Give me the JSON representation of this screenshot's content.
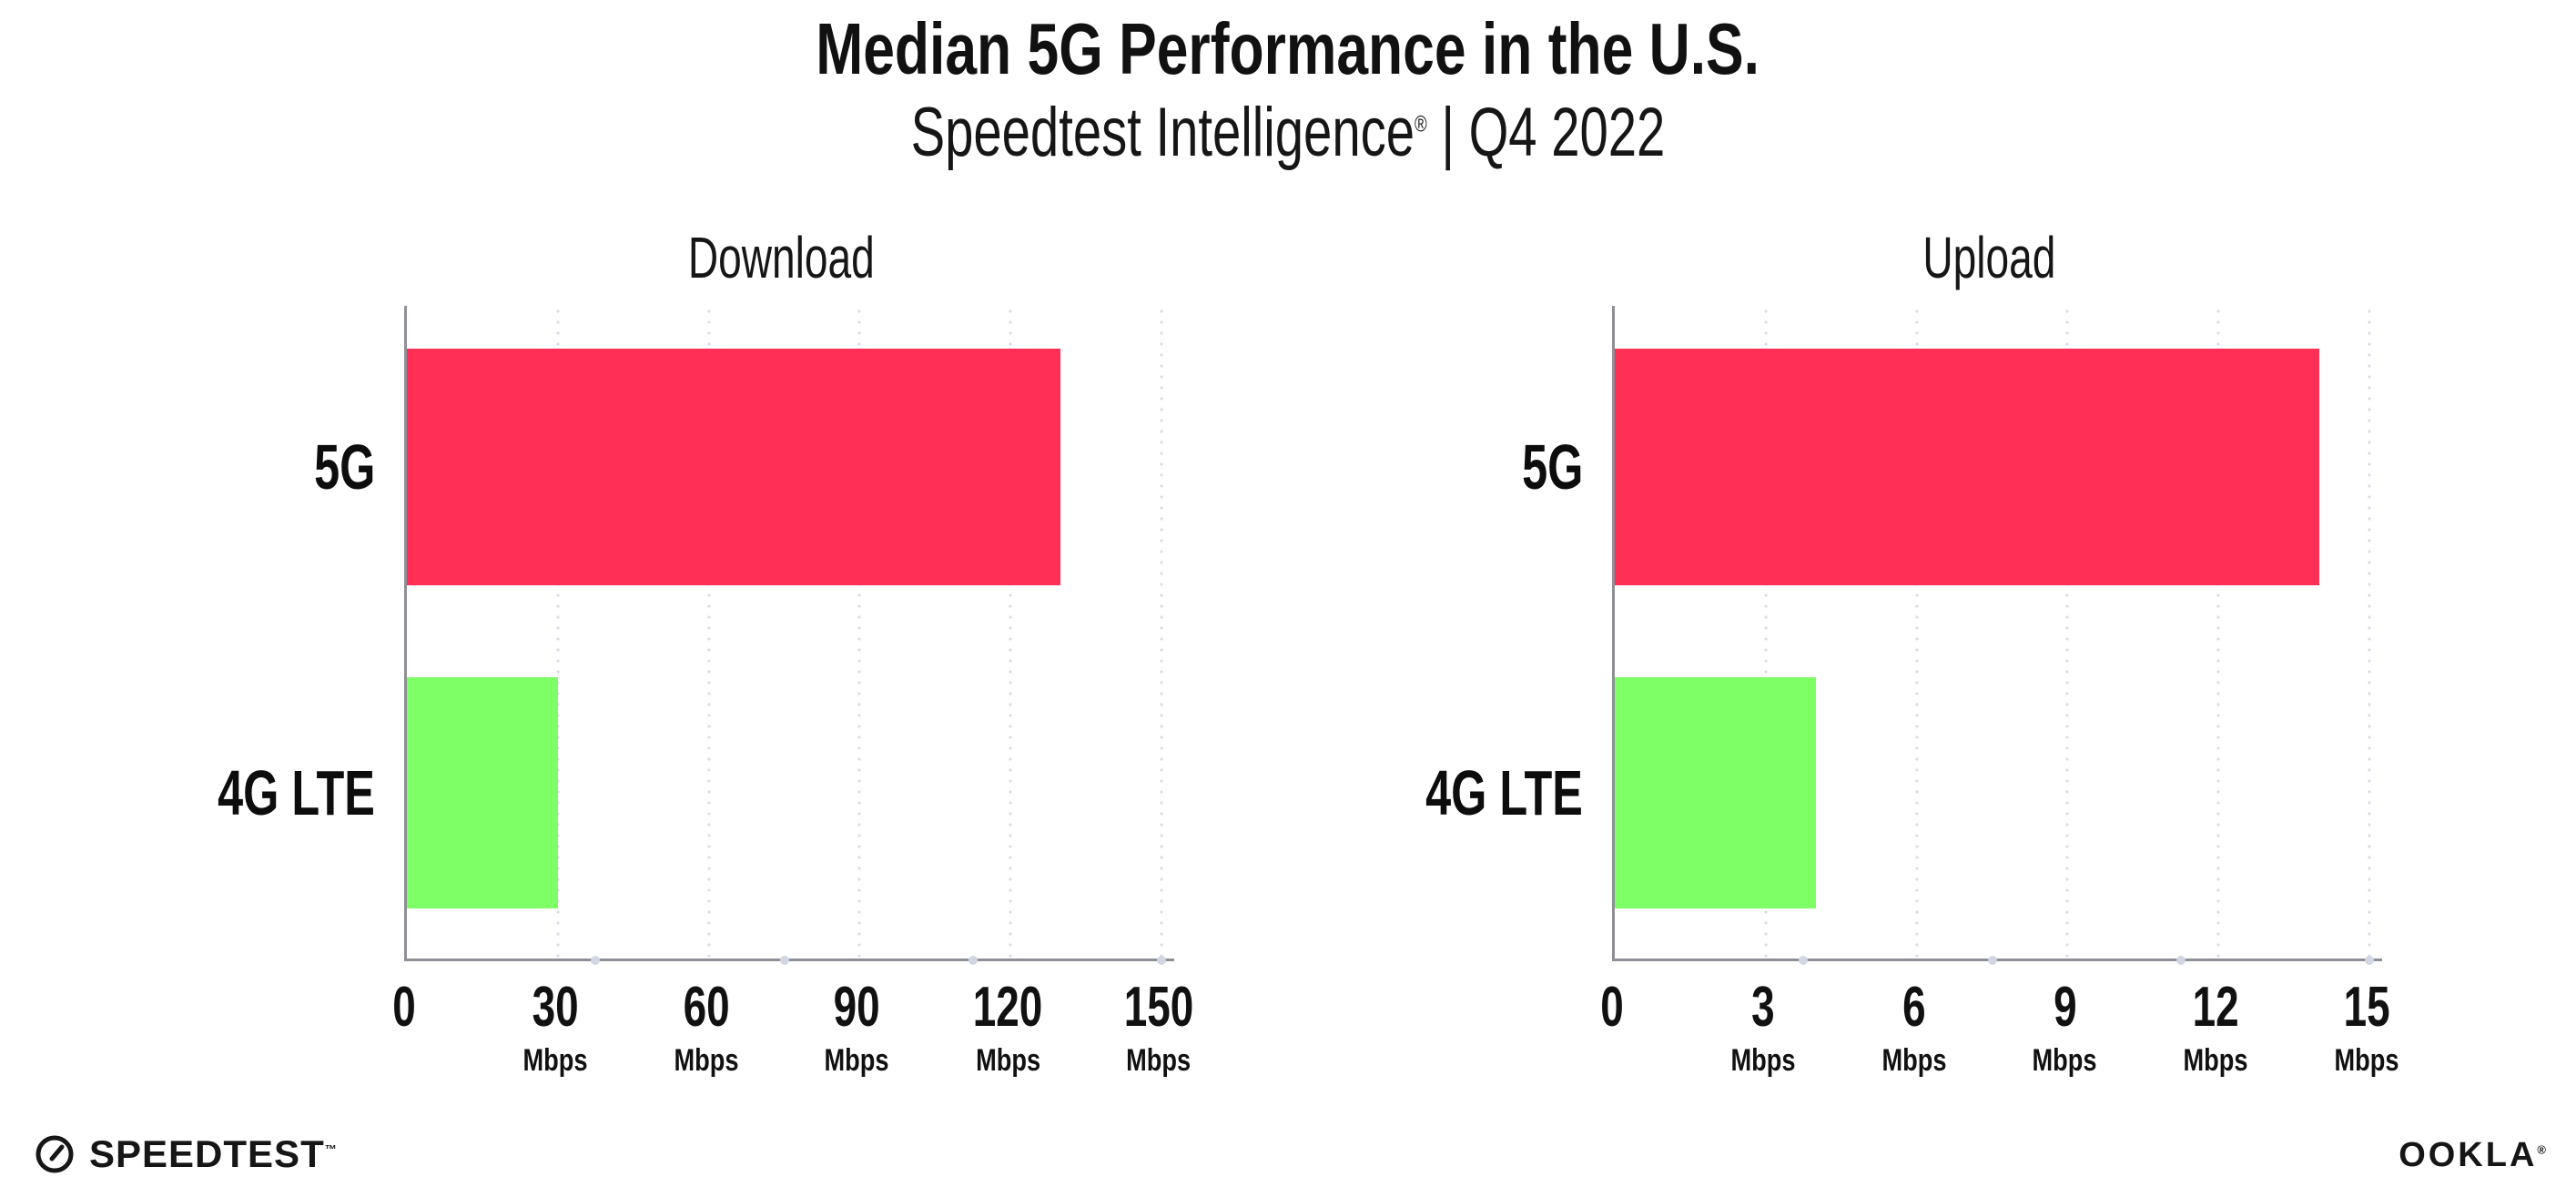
{
  "header": {
    "title": "Median 5G Performance in the U.S.",
    "subtitle_brand": "Speedtest Intelligence",
    "subtitle_reg": "®",
    "subtitle_period": "| Q4 2022"
  },
  "chart_data": [
    {
      "type": "bar",
      "orientation": "horizontal",
      "title": "Download",
      "categories": [
        "5G",
        "4G LTE"
      ],
      "values": [
        130,
        30
      ],
      "unit": "Mbps",
      "xlim": [
        0,
        150
      ],
      "grid": "dotted-vertical-gridlines",
      "legend": "none",
      "bar_colors": [
        "#FF2F56",
        "#7FFF66"
      ],
      "ticks": [
        {
          "label": "0",
          "unit": ""
        },
        {
          "label": "30",
          "unit": "Mbps"
        },
        {
          "label": "60",
          "unit": "Mbps"
        },
        {
          "label": "90",
          "unit": "Mbps"
        },
        {
          "label": "120",
          "unit": "Mbps"
        },
        {
          "label": "150",
          "unit": "Mbps"
        }
      ]
    },
    {
      "type": "bar",
      "orientation": "horizontal",
      "title": "Upload",
      "categories": [
        "5G",
        "4G LTE"
      ],
      "values": [
        14,
        4
      ],
      "unit": "Mbps",
      "xlim": [
        0,
        15
      ],
      "grid": "dotted-vertical-gridlines",
      "legend": "none",
      "bar_colors": [
        "#FF2F56",
        "#7FFF66"
      ],
      "ticks": [
        {
          "label": "0",
          "unit": ""
        },
        {
          "label": "3",
          "unit": "Mbps"
        },
        {
          "label": "6",
          "unit": "Mbps"
        },
        {
          "label": "9",
          "unit": "Mbps"
        },
        {
          "label": "12",
          "unit": "Mbps"
        },
        {
          "label": "15",
          "unit": "Mbps"
        }
      ]
    }
  ],
  "footer": {
    "speedtest_label": "SPEEDTEST",
    "speedtest_tm": "™",
    "ookla_label": "OOKLA",
    "ookla_reg": "®"
  },
  "colors": {
    "bar_5g": "#FF2F56",
    "bar_4g_lte": "#7FFF66",
    "axis": "#8F8F97",
    "grid_dots": "#D9DBE8",
    "text": "#111111"
  }
}
